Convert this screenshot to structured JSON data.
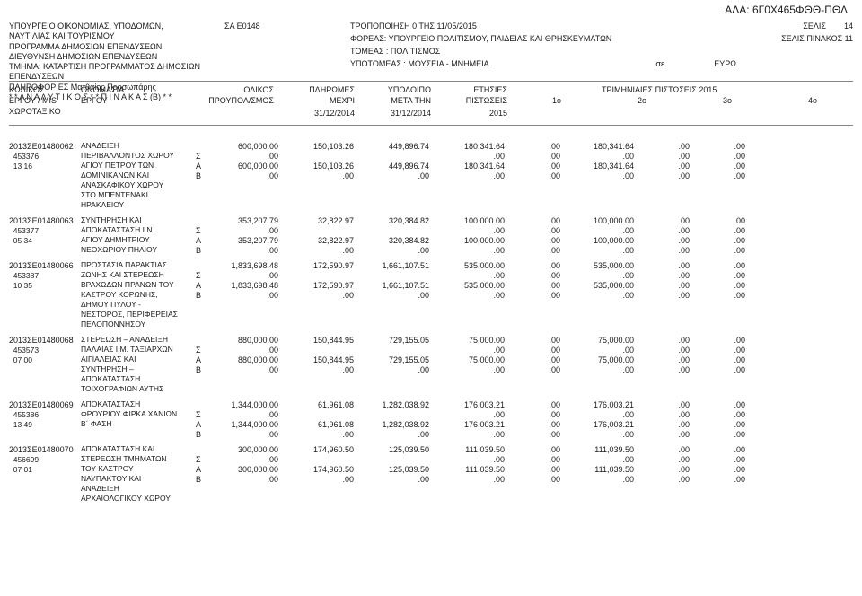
{
  "ada": "ΑΔΑ: 6Γ0Χ465ΦΘΘ-ΠΘΛ",
  "header": {
    "ministry1": "ΥΠΟΥΡΓΕΙΟ ΟΙΚΟΝΟΜΙΑΣ, ΥΠΟΔΟΜΩΝ,",
    "ministry2": "ΝΑΥΤΙΛΙΑΣ ΚΑΙ ΤΟΥΡΙΣΜΟΥ",
    "program": "ΠΡΟΓΡΑΜΜΑ ΔΗΜΟΣΙΩΝ ΕΠΕΝΔΥΣΕΩΝ",
    "directorate": "ΔΙΕΥΘΥΝΣΗ ΔΗΜΟΣΙΩΝ ΕΠΕΝΔΥΣΕΩΝ",
    "section": "ΤΜΗΜΑ: ΚΑΤΑΡΤΙΣΗ ΠΡΟΓΡΑΜΜΑΤΟΣ ΔΗΜΟΣΙΩΝ ΕΠΕΝΔΥΣΕΩΝ",
    "info": "ΠΛΗΡΟΦΟΡΙΕΣ Ματθαίος Προσωπάρης",
    "analytic": "* * Α Ν Α Λ Υ Τ Ι Κ Ο Σ * * Π Ι Ν Α Κ Α Σ (Β) * *",
    "sa": "ΣΑ Ε0148",
    "trop": "ΤΡΟΠΟΠΟΙΗΣΗ 0      ΤΗΣ 11/05/2015",
    "foreas": "ΦΟΡΕΑΣ: ΥΠΟΥΡΓΕΙΟ ΠΟΛΙΤΙΣΜΟΥ, ΠΑΙΔΕΙΑΣ ΚΑΙ ΘΡΗΣΚΕΥΜΑΤΩΝ",
    "tomeas": "ΤΟΜΕΑΣ : ΠΟΛΙΤΙΣΜΟΣ",
    "ypotomeas": "ΥΠΟΤΟΜΕΑΣ :  ΜΟΥΣΕΙΑ - ΜΝΗΜΕΙΑ",
    "se": "σε",
    "euro": "ΕΥΡΩ",
    "selis_lbl": "ΣΕΛΙΣ",
    "selis_val": "14",
    "selis_pin": "ΣΕΛΙΣ ΠΙΝΑΚΟΣ  11"
  },
  "cols": {
    "kodikos1": "ΚΩΔΙΚΟΣ",
    "kodikos2": "ΕΡΓΟΥ / MIS",
    "kodikos3": "ΧΩΡΟΤΑΞΙΚΟ",
    "onomasia1": "ΟΝΟΜΑΣΙΑ",
    "onomasia2": "ΕΡΓΟΥ",
    "olikos1": "ΟΛΙΚΟΣ",
    "olikos2": "ΠΡΟΥΠΟΛ/ΣΜΟΣ",
    "pliromes1": "ΠΛΗΡΩΜΕΣ",
    "pliromes2": "ΜΕΧΡΙ",
    "pliromes3": "31/12/2014",
    "ypoloipo1": "ΥΠΟΛΟΙΠΟ",
    "ypoloipo2": "ΜΕΤΑ ΤΗΝ",
    "ypoloipo3": "31/12/2014",
    "etisies1": "ΕΤΗΣΙΕΣ",
    "etisies2": "ΠΙΣΤΩΣΕΙΣ",
    "etisies3": "2015",
    "trim": "ΤΡΙΜΗΝΙΑΙΕΣ ΠΙΣΤΩΣΕΙΣ  2015",
    "q1": "1ο",
    "q2": "2ο",
    "q3": "3ο",
    "q4": "4ο"
  },
  "projects": [
    {
      "code": "2013ΣΕ01480062",
      "sub1": "453376",
      "sub2": "13 16",
      "title_lines": [
        "ΑΝΑΔΕΙΞΗ",
        "ΠΕΡΙΒΑΛΛΟΝΤΟΣ ΧΩΡΟΥ",
        "ΑΓΙΟΥ ΠΕΤΡΟΥ ΤΩΝ",
        "ΔΟΜΙΝΙΚΑΝΩΝ ΚΑΙ",
        "ΑΝΑΣΚΑΦΙΚΟΥ ΧΩΡΟΥ",
        "ΣΤΟ ΜΠΕΝΤΕΝΑΚΙ",
        "ΗΡΑΚΛΕΙΟΥ"
      ],
      "rows": [
        {
          "letter": "",
          "budget": "600,000.00",
          "paid": "150,103.26",
          "remain": "449,896.74",
          "annual": "180,341.64",
          "q1": ".00",
          "q2": "180,341.64",
          "q3": ".00",
          "q4": ".00"
        },
        {
          "letter": "Σ",
          "budget": ".00",
          "paid": "",
          "remain": "",
          "annual": ".00",
          "q1": ".00",
          "q2": ".00",
          "q3": ".00",
          "q4": ".00"
        },
        {
          "letter": "Α",
          "budget": "600,000.00",
          "paid": "150,103.26",
          "remain": "449,896.74",
          "annual": "180,341.64",
          "q1": ".00",
          "q2": "180,341.64",
          "q3": ".00",
          "q4": ".00"
        },
        {
          "letter": "Β",
          "budget": ".00",
          "paid": ".00",
          "remain": ".00",
          "annual": ".00",
          "q1": ".00",
          "q2": ".00",
          "q3": ".00",
          "q4": ".00"
        }
      ]
    },
    {
      "code": "2013ΣΕ01480063",
      "sub1": "453377",
      "sub2": "05 34",
      "title_lines": [
        "ΣΥΝΤΗΡΗΣΗ ΚΑΙ",
        "ΑΠΟΚΑΤΑΣΤΑΣΗ Ι.Ν.",
        "ΑΓΙΟΥ ΔΗΜΗΤΡΙΟΥ",
        "ΝΕΟΧΩΡΙΟΥ ΠΗΛΙΟΥ"
      ],
      "rows": [
        {
          "letter": "",
          "budget": "353,207.79",
          "paid": "32,822.97",
          "remain": "320,384.82",
          "annual": "100,000.00",
          "q1": ".00",
          "q2": "100,000.00",
          "q3": ".00",
          "q4": ".00"
        },
        {
          "letter": "Σ",
          "budget": ".00",
          "paid": "",
          "remain": "",
          "annual": ".00",
          "q1": ".00",
          "q2": ".00",
          "q3": ".00",
          "q4": ".00"
        },
        {
          "letter": "Α",
          "budget": "353,207.79",
          "paid": "32,822.97",
          "remain": "320,384.82",
          "annual": "100,000.00",
          "q1": ".00",
          "q2": "100,000.00",
          "q3": ".00",
          "q4": ".00"
        },
        {
          "letter": "Β",
          "budget": ".00",
          "paid": ".00",
          "remain": ".00",
          "annual": ".00",
          "q1": ".00",
          "q2": ".00",
          "q3": ".00",
          "q4": ".00"
        }
      ]
    },
    {
      "code": "2013ΣΕ01480066",
      "sub1": "453387",
      "sub2": "10 35",
      "title_lines": [
        "ΠΡΟΣΤΑΣΙΑ ΠΑΡΑΚΤΙΑΣ",
        "ΖΩΝΗΣ ΚΑΙ ΣΤΕΡΕΩΣΗ",
        "ΒΡΑΧΩΔΩΝ ΠΡΑΝΩΝ ΤΟΥ",
        "ΚΑΣΤΡΟΥ ΚΟΡΩΝΗΣ,",
        "ΔΗΜΟΥ ΠΥΛΟΥ -",
        "ΝΕΣΤΟΡΟΣ, ΠΕΡΙΦΕΡΕΙΑΣ",
        "ΠΕΛΟΠΟΝΝΗΣΟΥ"
      ],
      "rows": [
        {
          "letter": "",
          "budget": "1,833,698.48",
          "paid": "172,590.97",
          "remain": "1,661,107.51",
          "annual": "535,000.00",
          "q1": ".00",
          "q2": "535,000.00",
          "q3": ".00",
          "q4": ".00"
        },
        {
          "letter": "Σ",
          "budget": ".00",
          "paid": "",
          "remain": "",
          "annual": ".00",
          "q1": ".00",
          "q2": ".00",
          "q3": ".00",
          "q4": ".00"
        },
        {
          "letter": "Α",
          "budget": "1,833,698.48",
          "paid": "172,590.97",
          "remain": "1,661,107.51",
          "annual": "535,000.00",
          "q1": ".00",
          "q2": "535,000.00",
          "q3": ".00",
          "q4": ".00"
        },
        {
          "letter": "Β",
          "budget": ".00",
          "paid": ".00",
          "remain": ".00",
          "annual": ".00",
          "q1": ".00",
          "q2": ".00",
          "q3": ".00",
          "q4": ".00"
        }
      ]
    },
    {
      "code": "2013ΣΕ01480068",
      "sub1": "453573",
      "sub2": "07 00",
      "title_lines": [
        "ΣΤΕΡΕΩΣΗ – ΑΝΑΔΕΙΞΗ",
        "ΠΑΛΑΙΑΣ Ι.Μ. ΤΑΞΙΑΡΧΩΝ",
        "ΑΙΓΙΑΛΕΙΑΣ ΚΑΙ",
        "ΣΥΝΤΗΡΗΣΗ –",
        "ΑΠΟΚΑΤΑΣΤΑΣΗ",
        "ΤΟΙΧΟΓΡΑΦΙΩΝ ΑΥΤΗΣ"
      ],
      "rows": [
        {
          "letter": "",
          "budget": "880,000.00",
          "paid": "150,844.95",
          "remain": "729,155.05",
          "annual": "75,000.00",
          "q1": ".00",
          "q2": "75,000.00",
          "q3": ".00",
          "q4": ".00"
        },
        {
          "letter": "Σ",
          "budget": ".00",
          "paid": "",
          "remain": "",
          "annual": ".00",
          "q1": ".00",
          "q2": ".00",
          "q3": ".00",
          "q4": ".00"
        },
        {
          "letter": "Α",
          "budget": "880,000.00",
          "paid": "150,844.95",
          "remain": "729,155.05",
          "annual": "75,000.00",
          "q1": ".00",
          "q2": "75,000.00",
          "q3": ".00",
          "q4": ".00"
        },
        {
          "letter": "Β",
          "budget": ".00",
          "paid": ".00",
          "remain": ".00",
          "annual": ".00",
          "q1": ".00",
          "q2": ".00",
          "q3": ".00",
          "q4": ".00"
        }
      ]
    },
    {
      "code": "2013ΣΕ01480069",
      "sub1": "455386",
      "sub2": "13 49",
      "title_lines": [
        "ΑΠΟΚΑΤΑΣΤΑΣΗ",
        "ΦΡΟΥΡΙΟΥ ΦΙΡΚΑ ΧΑΝΙΩΝ",
        "Β΄ ΦΑΣΗ"
      ],
      "rows": [
        {
          "letter": "",
          "budget": "1,344,000.00",
          "paid": "61,961.08",
          "remain": "1,282,038.92",
          "annual": "176,003.21",
          "q1": ".00",
          "q2": "176,003.21",
          "q3": ".00",
          "q4": ".00"
        },
        {
          "letter": "Σ",
          "budget": ".00",
          "paid": "",
          "remain": "",
          "annual": ".00",
          "q1": ".00",
          "q2": ".00",
          "q3": ".00",
          "q4": ".00"
        },
        {
          "letter": "Α",
          "budget": "1,344,000.00",
          "paid": "61,961.08",
          "remain": "1,282,038.92",
          "annual": "176,003.21",
          "q1": ".00",
          "q2": "176,003.21",
          "q3": ".00",
          "q4": ".00"
        },
        {
          "letter": "Β",
          "budget": ".00",
          "paid": ".00",
          "remain": ".00",
          "annual": ".00",
          "q1": ".00",
          "q2": ".00",
          "q3": ".00",
          "q4": ".00"
        }
      ]
    },
    {
      "code": "2013ΣΕ01480070",
      "sub1": "456699",
      "sub2": "07 01",
      "title_lines": [
        "ΑΠΟΚΑΤΑΣΤΑΣΗ ΚΑΙ",
        "ΣΤΕΡΕΩΣΗ ΤΜΗΜΑΤΩΝ",
        "ΤΟΥ ΚΑΣΤΡΟΥ",
        "ΝΑΥΠΑΚΤΟΥ ΚΑΙ",
        "ΑΝΑΔΕΙΞΗ",
        "ΑΡΧΑΙΟΛΟΓΙΚΟΥ ΧΩΡΟΥ"
      ],
      "rows": [
        {
          "letter": "",
          "budget": "300,000.00",
          "paid": "174,960.50",
          "remain": "125,039.50",
          "annual": "111,039.50",
          "q1": ".00",
          "q2": "111,039.50",
          "q3": ".00",
          "q4": ".00"
        },
        {
          "letter": "Σ",
          "budget": ".00",
          "paid": "",
          "remain": "",
          "annual": ".00",
          "q1": ".00",
          "q2": ".00",
          "q3": ".00",
          "q4": ".00"
        },
        {
          "letter": "Α",
          "budget": "300,000.00",
          "paid": "174,960.50",
          "remain": "125,039.50",
          "annual": "111,039.50",
          "q1": ".00",
          "q2": "111,039.50",
          "q3": ".00",
          "q4": ".00"
        },
        {
          "letter": "Β",
          "budget": ".00",
          "paid": ".00",
          "remain": ".00",
          "annual": ".00",
          "q1": ".00",
          "q2": ".00",
          "q3": ".00",
          "q4": ".00"
        }
      ]
    }
  ]
}
